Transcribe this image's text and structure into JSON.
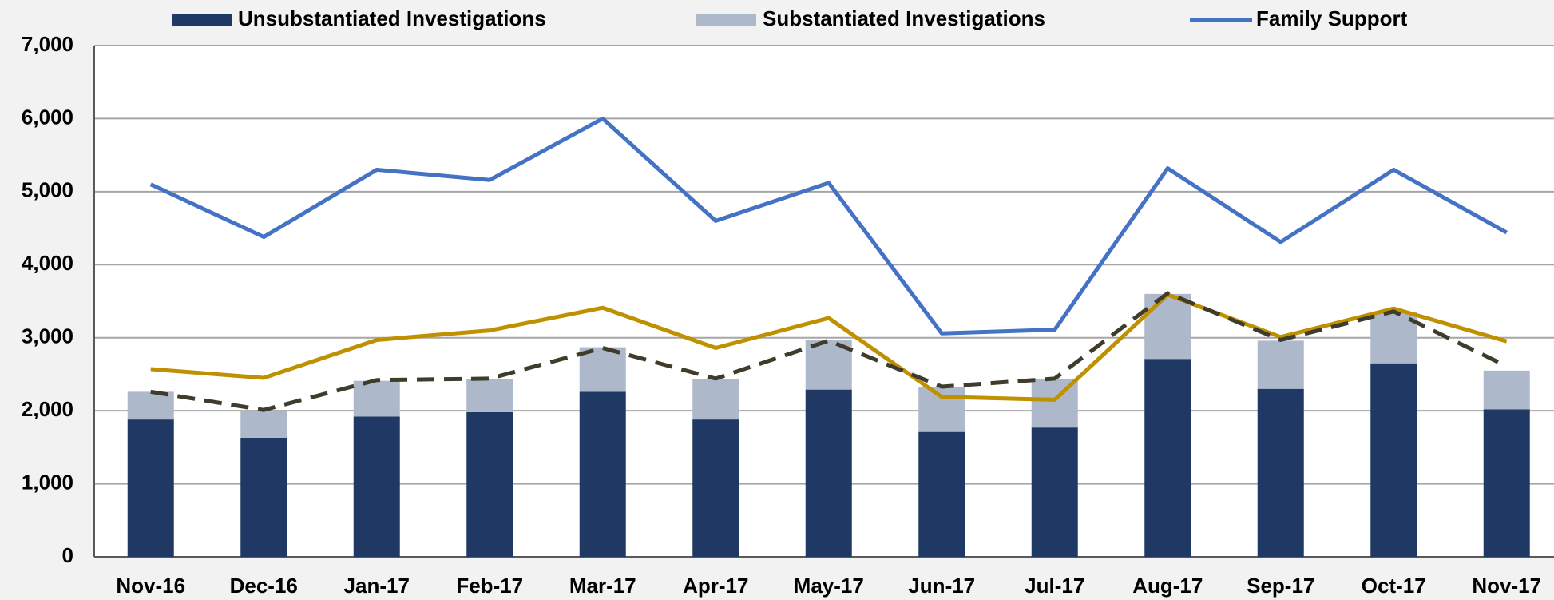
{
  "chart_data": {
    "type": "bar",
    "categories": [
      "Nov-16",
      "Dec-16",
      "Jan-17",
      "Feb-17",
      "Mar-17",
      "Apr-17",
      "May-17",
      "Jun-17",
      "Jul-17",
      "Aug-17",
      "Sep-17",
      "Oct-17",
      "Nov-17"
    ],
    "series": [
      {
        "name": "Unsubstantiated Investigations",
        "type": "bar",
        "color": "#1f3864",
        "values": [
          1880,
          1630,
          1920,
          1980,
          2260,
          1880,
          2290,
          1710,
          1770,
          2710,
          2300,
          2650,
          2020
        ]
      },
      {
        "name": "Substantiated Investigations",
        "type": "bar",
        "color": "#adb9ca",
        "values": [
          380,
          370,
          490,
          450,
          610,
          550,
          680,
          610,
          670,
          890,
          660,
          700,
          530
        ]
      },
      {
        "name": "Family Support",
        "type": "line",
        "color": "#4472c4",
        "values": [
          5100,
          4380,
          5300,
          5160,
          6000,
          4600,
          5120,
          3060,
          3110,
          5320,
          4310,
          5300,
          4440
        ]
      },
      {
        "type": "line",
        "color": "#bf9000",
        "values": [
          2570,
          2450,
          2970,
          3100,
          3410,
          2860,
          3270,
          2190,
          2150,
          3590,
          3010,
          3400,
          2950
        ]
      },
      {
        "type": "line",
        "color": "#403c2c",
        "dashed": true,
        "values": [
          2260,
          2010,
          2420,
          2440,
          2860,
          2440,
          2960,
          2330,
          2440,
          3610,
          2970,
          3360,
          2610
        ]
      }
    ],
    "stacked": true,
    "ylim": [
      0,
      7000
    ],
    "yticks": [
      0,
      {
        "value": 1000,
        "label": "1,000"
      },
      {
        "value": 2000,
        "label": "2,000"
      },
      {
        "value": 3000,
        "label": "3,000"
      },
      {
        "value": 4000,
        "label": "4,000"
      },
      {
        "value": 5000,
        "label": "5,000"
      },
      {
        "value": 6000,
        "label": "6,000"
      },
      {
        "value": 7000,
        "label": "7,000"
      }
    ],
    "grid": true,
    "legend": "top"
  }
}
